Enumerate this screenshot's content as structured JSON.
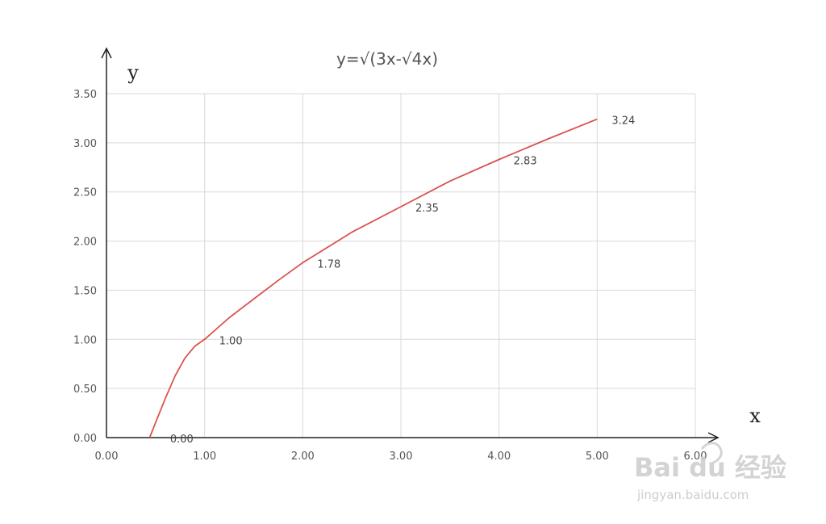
{
  "chart_data": {
    "type": "line",
    "title": "y=√(3x-√4x)",
    "xlabel": "x",
    "ylabel": "y",
    "xlim": [
      0,
      6
    ],
    "ylim": [
      0,
      3.5
    ],
    "x_ticks": [
      "0.00",
      "1.00",
      "2.00",
      "3.00",
      "4.00",
      "5.00",
      "6.00"
    ],
    "y_ticks": [
      "0.00",
      "0.50",
      "1.00",
      "1.50",
      "2.00",
      "2.50",
      "3.00",
      "3.50"
    ],
    "grid": true,
    "series": [
      {
        "color": "#d9534f",
        "x": [
          0.44,
          0.5,
          0.6,
          0.7,
          0.8,
          0.9,
          1.0,
          1.25,
          1.5,
          1.75,
          2.0,
          2.5,
          3.0,
          3.5,
          4.0,
          4.5,
          5.0
        ],
        "y": [
          0.0,
          0.15,
          0.4,
          0.63,
          0.81,
          0.93,
          1.0,
          1.22,
          1.41,
          1.6,
          1.78,
          2.09,
          2.35,
          2.61,
          2.83,
          3.04,
          3.24
        ]
      }
    ],
    "data_labels": [
      {
        "x": 0.5,
        "y": 0.0,
        "text": "0.00"
      },
      {
        "x": 1.0,
        "y": 1.0,
        "text": "1.00"
      },
      {
        "x": 2.0,
        "y": 1.78,
        "text": "1.78"
      },
      {
        "x": 3.0,
        "y": 2.35,
        "text": "2.35"
      },
      {
        "x": 4.0,
        "y": 2.83,
        "text": "2.83"
      },
      {
        "x": 5.0,
        "y": 3.24,
        "text": "3.24"
      }
    ]
  },
  "watermark": {
    "brand": "Bai du 经验",
    "url": "jingyan.baidu.com"
  }
}
